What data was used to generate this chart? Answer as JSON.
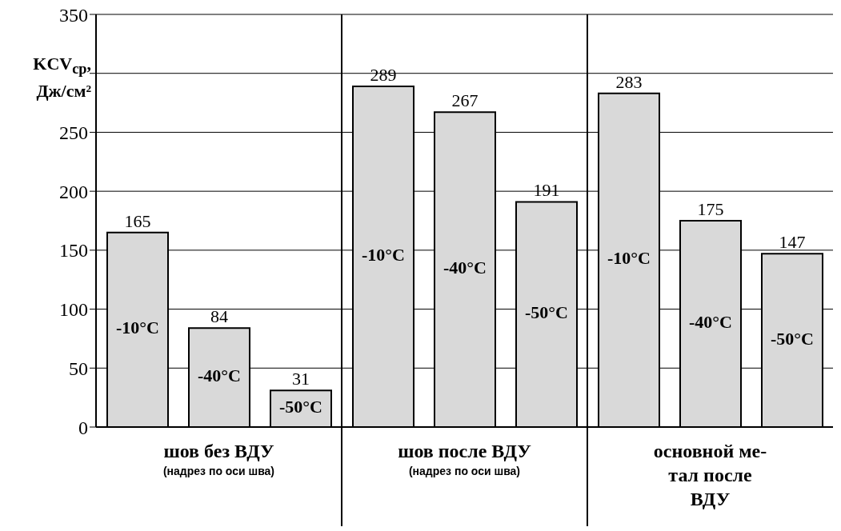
{
  "chart_data": {
    "type": "bar",
    "ylabel": "KCV$_{ср}$, Дж/см²",
    "categories": [
      "шов без ВДУ\n(надрез по оси шва)",
      "шов после ВДУ\n(надрез по оси шва)",
      "основной ме-\nтал после\nВДУ"
    ],
    "series": [
      {
        "name": "-10°C",
        "color": "#d9d9d9",
        "values": [
          165,
          289,
          283
        ]
      },
      {
        "name": "-40°C",
        "color": "#d9d9d9",
        "values": [
          84,
          267,
          175
        ]
      },
      {
        "name": "-50°C",
        "color": "#d9d9d9",
        "values": [
          31,
          191,
          147
        ]
      }
    ],
    "ylim": [
      0,
      350
    ],
    "yticks": [
      0,
      50,
      100,
      150,
      200,
      250,
      {
        "value": 300,
        "label": null
      },
      350
    ],
    "grid": "y",
    "legend": false,
    "data_labels": true
  }
}
